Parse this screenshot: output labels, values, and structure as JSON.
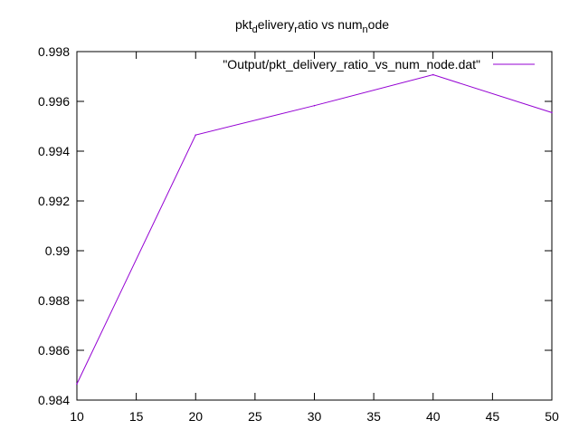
{
  "chart_data": {
    "type": "line",
    "title": {
      "parts": [
        {
          "text": "pkt",
          "style": "normal"
        },
        {
          "text": "d",
          "style": "sub"
        },
        {
          "text": "elivery",
          "style": "normal"
        },
        {
          "text": "r",
          "style": "sub"
        },
        {
          "text": "atio vs num",
          "style": "normal"
        },
        {
          "text": "n",
          "style": "sub"
        },
        {
          "text": "ode",
          "style": "normal"
        }
      ]
    },
    "xlabel": "",
    "ylabel": "",
    "xlim": [
      10,
      50
    ],
    "ylim": [
      0.984,
      0.998
    ],
    "x_ticks": [
      10,
      15,
      20,
      25,
      30,
      35,
      40,
      45,
      50
    ],
    "y_ticks": [
      0.984,
      0.986,
      0.988,
      0.99,
      0.992,
      0.994,
      0.996,
      0.998
    ],
    "x_tick_labels": [
      "10",
      "15",
      "20",
      "25",
      "30",
      "35",
      "40",
      "45",
      "50"
    ],
    "y_tick_labels": [
      "0.984",
      "0.986",
      "0.988",
      "0.99",
      "0.992",
      "0.994",
      "0.996",
      "0.998"
    ],
    "grid": false,
    "legend_position": "top-right",
    "series": [
      {
        "name": "\"Output/pkt_delivery_ratio_vs_num_node.dat\"",
        "color": "#9400d3",
        "x": [
          10,
          20,
          30,
          40,
          50
        ],
        "y": [
          0.98465,
          0.99465,
          0.99583,
          0.99707,
          0.99555
        ]
      }
    ]
  }
}
